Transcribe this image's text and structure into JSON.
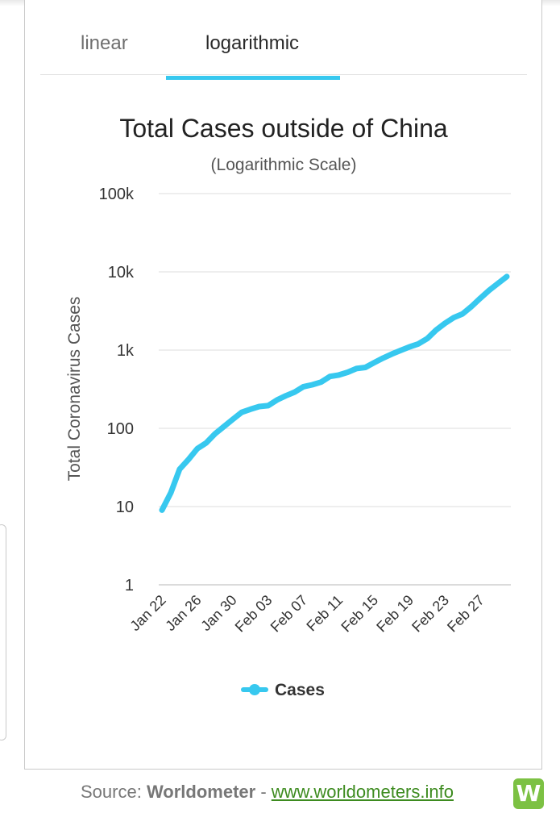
{
  "tabs": [
    {
      "label": "linear",
      "active": false
    },
    {
      "label": "logarithmic",
      "active": true
    }
  ],
  "colors": {
    "accent": "#37c8ef",
    "series": "#37c8ef",
    "link": "#3d8b1f",
    "logo": "#7cc143"
  },
  "chart_data": {
    "type": "line",
    "title": "Total Cases outside of China",
    "subtitle": "(Logarithmic Scale)",
    "xlabel": "",
    "ylabel": "Total Coronavirus Cases",
    "y_scale": "log",
    "ylim": [
      1,
      100000
    ],
    "y_ticks": [
      {
        "value": 1,
        "label": "1"
      },
      {
        "value": 10,
        "label": "10"
      },
      {
        "value": 100,
        "label": "100"
      },
      {
        "value": 1000,
        "label": "1k"
      },
      {
        "value": 10000,
        "label": "10k"
      },
      {
        "value": 100000,
        "label": "100k"
      }
    ],
    "x_tick_labels": [
      "Jan 22",
      "Jan 26",
      "Jan 30",
      "Feb 03",
      "Feb 07",
      "Feb 11",
      "Feb 15",
      "Feb 19",
      "Feb 23",
      "Feb 27"
    ],
    "grid": true,
    "legend": {
      "position": "bottom-center",
      "entries": [
        "Cases"
      ]
    },
    "x": [
      "Jan 22",
      "Jan 23",
      "Jan 24",
      "Jan 25",
      "Jan 26",
      "Jan 27",
      "Jan 28",
      "Jan 29",
      "Jan 30",
      "Jan 31",
      "Feb 01",
      "Feb 02",
      "Feb 03",
      "Feb 04",
      "Feb 05",
      "Feb 06",
      "Feb 07",
      "Feb 08",
      "Feb 09",
      "Feb 10",
      "Feb 11",
      "Feb 12",
      "Feb 13",
      "Feb 14",
      "Feb 15",
      "Feb 16",
      "Feb 17",
      "Feb 18",
      "Feb 19",
      "Feb 20",
      "Feb 21",
      "Feb 22",
      "Feb 23",
      "Feb 24",
      "Feb 25",
      "Feb 26",
      "Feb 27",
      "Feb 28",
      "Feb 29",
      "Mar 01"
    ],
    "series": [
      {
        "name": "Cases",
        "values": [
          9,
          15,
          30,
          40,
          55,
          65,
          85,
          105,
          130,
          160,
          175,
          190,
          195,
          230,
          260,
          290,
          340,
          360,
          390,
          460,
          480,
          520,
          580,
          600,
          690,
          790,
          890,
          990,
          1100,
          1200,
          1400,
          1800,
          2200,
          2600,
          2900,
          3600,
          4600,
          5800,
          7100,
          8700
        ]
      }
    ]
  },
  "source": {
    "prefix": "Source: ",
    "brand": "Worldometer",
    "separator": " - ",
    "link_text": "www.worldometers.info",
    "logo_letter": "W"
  }
}
